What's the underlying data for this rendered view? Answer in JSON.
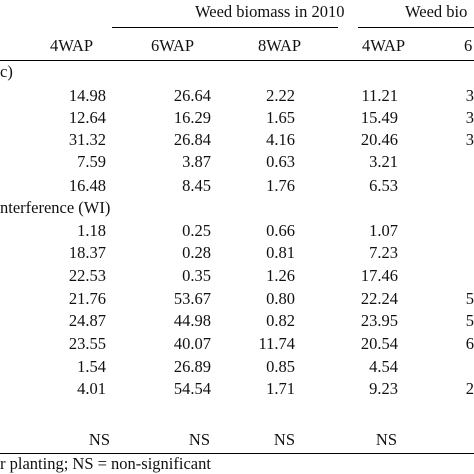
{
  "headers": {
    "group_2010": "Weed biomass in 2010",
    "group_2011": "Weed bio",
    "columns": [
      "4WAP",
      "6WAP",
      "8WAP",
      "4WAP",
      "6"
    ]
  },
  "sections": {
    "first": "c)",
    "second": "nterference (WI)"
  },
  "rows_top": [
    {
      "c": [
        "14.98",
        "26.64",
        "2.22",
        "11.21",
        "3"
      ]
    },
    {
      "c": [
        "12.64",
        "16.29",
        "1.65",
        "15.49",
        "3"
      ]
    },
    {
      "c": [
        "31.32",
        "26.84",
        "4.16",
        "20.46",
        "3"
      ]
    },
    {
      "c": [
        "7.59",
        "3.87",
        "0.63",
        "3.21",
        ""
      ]
    },
    {
      "c": [
        "16.48",
        "8.45",
        "1.76",
        "6.53",
        ""
      ]
    }
  ],
  "rows_bottom": [
    {
      "c": [
        "1.18",
        "0.25",
        "0.66",
        "1.07",
        ""
      ]
    },
    {
      "c": [
        "18.37",
        "0.28",
        "0.81",
        "7.23",
        ""
      ]
    },
    {
      "c": [
        "22.53",
        "0.35",
        "1.26",
        "17.46",
        ""
      ]
    },
    {
      "c": [
        "21.76",
        "53.67",
        "0.80",
        "22.24",
        "5"
      ]
    },
    {
      "c": [
        "24.87",
        "44.98",
        "0.82",
        "23.95",
        "5"
      ]
    },
    {
      "c": [
        "23.55",
        "40.07",
        "11.74",
        "20.54",
        "6"
      ]
    },
    {
      "c": [
        "1.54",
        "26.89",
        "0.85",
        "4.54",
        ""
      ]
    },
    {
      "c": [
        "4.01",
        "54.54",
        "1.71",
        "9.23",
        "2"
      ]
    }
  ],
  "significance": [
    "NS",
    "NS",
    "NS",
    "NS"
  ],
  "footnote": "r planting; NS = non-significant"
}
